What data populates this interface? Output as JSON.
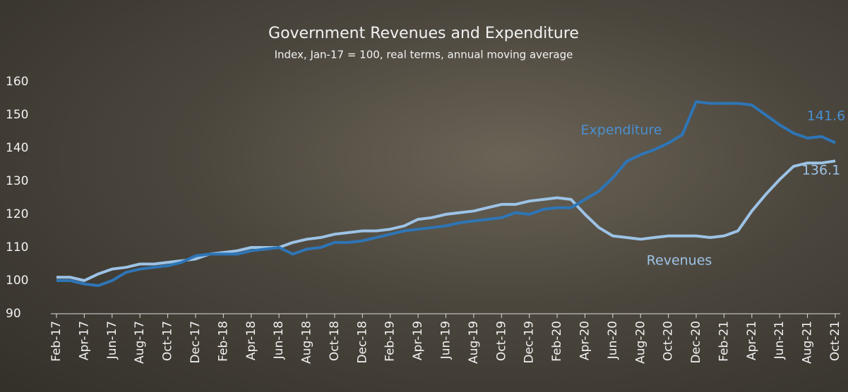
{
  "chart_data": {
    "type": "line",
    "title": "Government Revenues and Expenditure",
    "subtitle": "Index, Jan-17 = 100, real terms, annual moving average",
    "categories": [
      "Feb-17",
      null,
      "Apr-17",
      null,
      "Jun-17",
      null,
      "Aug-17",
      null,
      "Oct-17",
      null,
      "Dec-17",
      null,
      "Feb-18",
      null,
      "Apr-18",
      null,
      "Jun-18",
      null,
      "Aug-18",
      null,
      "Oct-18",
      null,
      "Dec-18",
      null,
      "Feb-19",
      null,
      "Apr-19",
      null,
      "Jun-19",
      null,
      "Aug-19",
      null,
      "Oct-19",
      null,
      "Dec-19",
      null,
      "Feb-20",
      null,
      "Apr-20",
      null,
      "Jun-20",
      null,
      "Aug-20",
      null,
      "Oct-20",
      null,
      "Dec-20",
      null,
      "Feb-21",
      null,
      "Apr-21",
      null,
      "Jun-21",
      null,
      "Aug-21",
      null,
      "Oct-21"
    ],
    "series": [
      {
        "name": "Expenditure",
        "color": "#2e75b6",
        "values": [
          100,
          100,
          99,
          98.5,
          100,
          102.5,
          103.5,
          104,
          104.5,
          105.5,
          107.5,
          108,
          108,
          108,
          109,
          109.5,
          110,
          108,
          109.5,
          110,
          111.5,
          111.5,
          112,
          113,
          114,
          115,
          115.5,
          116,
          116.5,
          117.5,
          118,
          118.5,
          119,
          120.5,
          120,
          121.5,
          122,
          122,
          124.5,
          127,
          131,
          136,
          138,
          139.5,
          141.5,
          144,
          154,
          153.5,
          153.5,
          153.5,
          153,
          150,
          147,
          144.5,
          143,
          143.5,
          141.6
        ]
      },
      {
        "name": "Revenues",
        "color": "#9dc3e6",
        "values": [
          101,
          101,
          100,
          102,
          103.5,
          104,
          105,
          105,
          105.5,
          106,
          106.5,
          108,
          108.5,
          109,
          110,
          110,
          110,
          111.5,
          112.5,
          113,
          114,
          114.5,
          115,
          115,
          115.5,
          116.5,
          118.5,
          119,
          120,
          120.5,
          121,
          122,
          123,
          123,
          124,
          124.5,
          125,
          124.5,
          120,
          116,
          113.5,
          113,
          112.5,
          113,
          113.5,
          113.5,
          113.5,
          113,
          113.5,
          115,
          121,
          126,
          130.5,
          134.5,
          135.5,
          135.5,
          136.1
        ]
      }
    ],
    "ylim": [
      90,
      160
    ],
    "yticks": [
      90,
      100,
      110,
      120,
      130,
      140,
      150,
      160
    ],
    "grid": false
  }
}
